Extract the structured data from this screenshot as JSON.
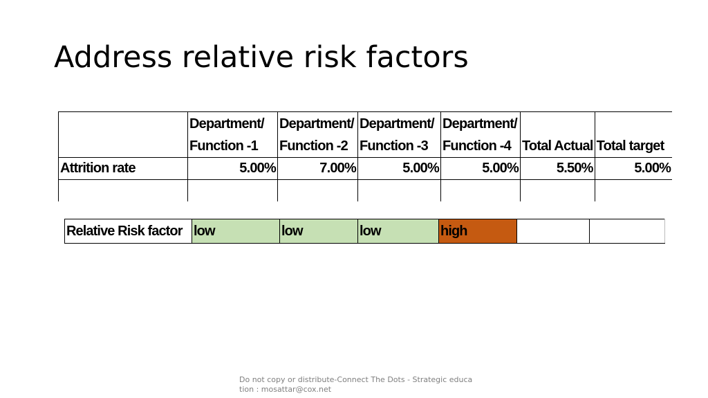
{
  "slide": {
    "title": "Address relative risk factors",
    "footer": "Do not copy or distribute-Connect The Dots - Strategic education : mosattar@cox.net"
  },
  "attrition_table": {
    "headers": [
      "",
      "Department/\nFunction -1",
      "Department/\nFunction -2",
      "Department/\nFunction -3",
      "Department/\nFunction -4",
      "Total Actual",
      "Total target"
    ],
    "row": {
      "label": "Attrition rate",
      "values": [
        "5.00%",
        "7.00%",
        "5.00%",
        "5.00%",
        "5.50%",
        "5.00%"
      ]
    }
  },
  "risk_table": {
    "label": "Relative Risk factor",
    "cells": [
      {
        "text": "low",
        "color": "#c6e0b4"
      },
      {
        "text": "low",
        "color": "#c6e0b4"
      },
      {
        "text": "low",
        "color": "#c6e0b4"
      },
      {
        "text": "high",
        "color": "#c55a11"
      },
      {
        "text": "",
        "color": "#ffffff"
      },
      {
        "text": "",
        "color": "#ffffff"
      }
    ]
  }
}
